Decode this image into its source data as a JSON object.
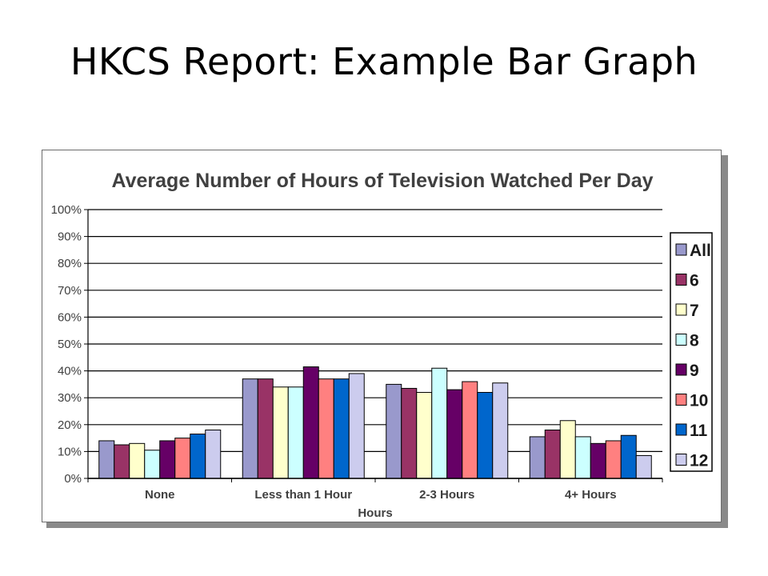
{
  "slide": {
    "title": "HKCS Report: Example Bar Graph"
  },
  "chart_data": {
    "type": "bar",
    "title": "Average Number of Hours of Television Watched Per Day",
    "xlabel": "Hours",
    "ylabel": "",
    "ylim": [
      0,
      100
    ],
    "yticks": [
      "0%",
      "10%",
      "20%",
      "30%",
      "40%",
      "50%",
      "60%",
      "70%",
      "80%",
      "90%",
      "100%"
    ],
    "grid": true,
    "legend_position": "right",
    "categories": [
      "None",
      "Less than 1 Hour",
      "2-3 Hours",
      "4+ Hours"
    ],
    "series": [
      {
        "name": "All",
        "color": "#9999cc",
        "values": [
          14,
          37,
          35,
          15.5
        ]
      },
      {
        "name": "6",
        "color": "#993366",
        "values": [
          12.5,
          37,
          33.5,
          18
        ]
      },
      {
        "name": "7",
        "color": "#ffffcc",
        "values": [
          13,
          34,
          32,
          21.5
        ]
      },
      {
        "name": "8",
        "color": "#ccffff",
        "values": [
          10.5,
          34,
          41,
          15.5
        ]
      },
      {
        "name": "9",
        "color": "#660066",
        "values": [
          14,
          41.5,
          33,
          13
        ]
      },
      {
        "name": "10",
        "color": "#ff8080",
        "values": [
          15,
          37,
          36,
          14
        ]
      },
      {
        "name": "11",
        "color": "#0066cc",
        "values": [
          16.5,
          37,
          32,
          16
        ]
      },
      {
        "name": "12",
        "color": "#ccccee",
        "values": [
          18,
          39,
          35.5,
          8.5
        ]
      }
    ]
  }
}
